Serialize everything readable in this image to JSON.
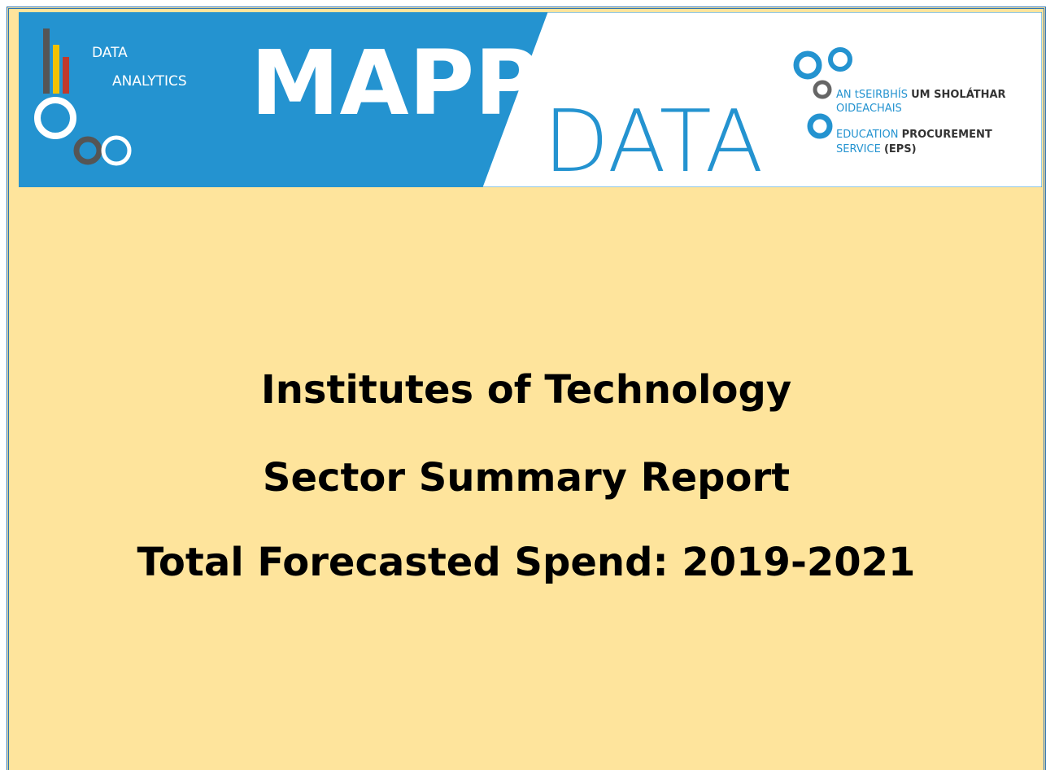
{
  "banner": {
    "left_line1": "DATA",
    "left_line2": "ANALYTICS",
    "brand": "MAPP",
    "brand2": "DATA",
    "eps_line1a": "AN tSEIRBHÍS ",
    "eps_line1b": "UM SHOLÁTHAR",
    "eps_line2": "OIDEACHAIS",
    "eps_line3a": "EDUCATION ",
    "eps_line3b": "PROCUREMENT",
    "eps_line4a": "SERVICE ",
    "eps_line4b": "(EPS)"
  },
  "title": {
    "line1": "Institutes of Technology",
    "line2": "Sector Summary Report",
    "line3": "Total Forecasted Spend: 2019-2021"
  }
}
